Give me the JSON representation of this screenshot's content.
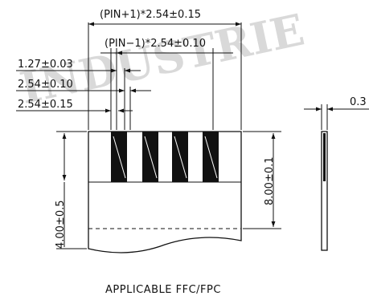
{
  "watermark": "INDUSTRIE",
  "dimensions": {
    "outer_pitch": "(PIN+1)*2.54±0.15",
    "inner_pitch": "(PIN−1)*2.54±0.10",
    "contact_width": "1.27±0.03",
    "pitch_a": "2.54±0.10",
    "pitch_b": "2.54±0.15",
    "side_thickness": "0.3",
    "contact_length": "8.00±0.1",
    "stiffener_length": "4.00±0.5"
  },
  "caption": "APPLICABLE FFC/FPC",
  "contacts_count": 4
}
